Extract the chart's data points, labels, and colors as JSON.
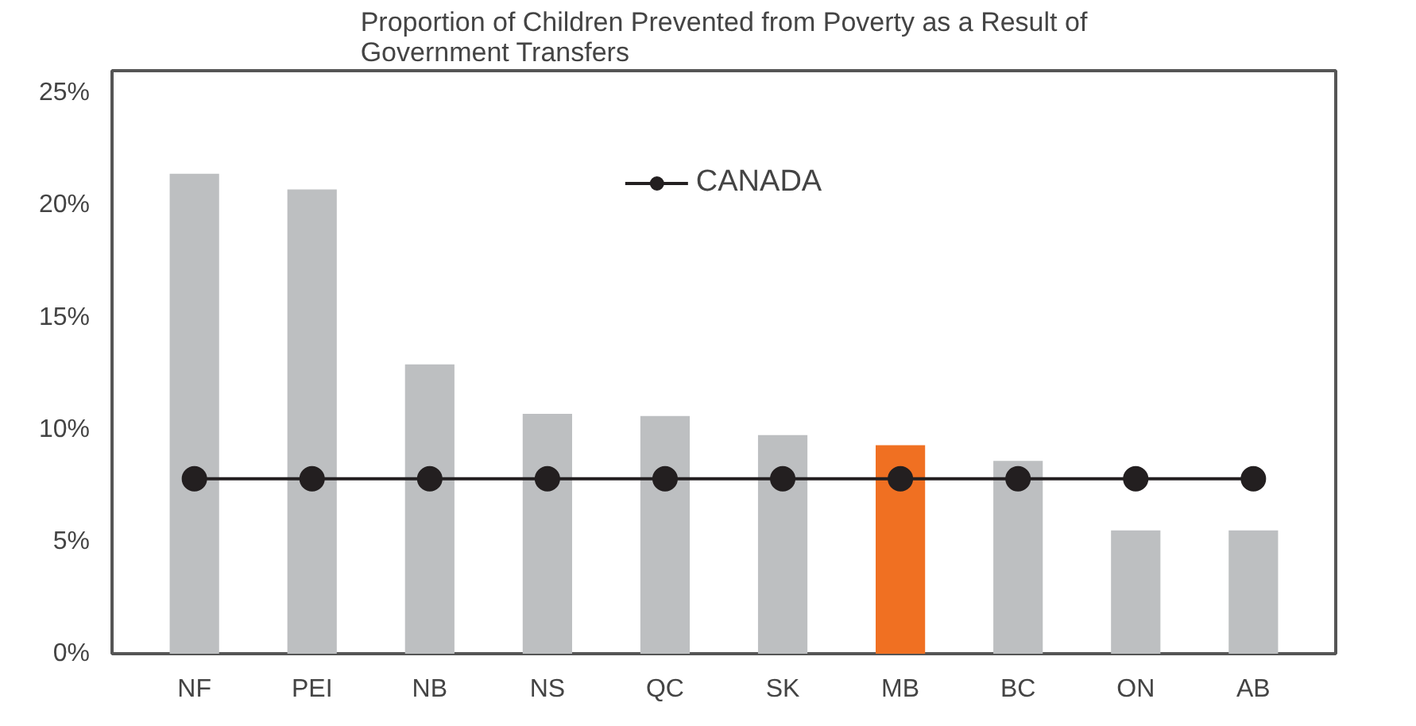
{
  "chart_data": {
    "type": "bar",
    "title": "Proportion of Children Prevented from Poverty as a Result of\nGovernment Transfers",
    "categories": [
      "NF",
      "PEI",
      "NB",
      "NS",
      "QC",
      "SK",
      "MB",
      "BC",
      "ON",
      "AB"
    ],
    "series": [
      {
        "colors": [
          "#bdbfc1",
          "#bdbfc1",
          "#bdbfc1",
          "#bdbfc1",
          "#bdbfc1",
          "#bdbfc1",
          "#f07022",
          "#bdbfc1",
          "#bdbfc1",
          "#bdbfc1"
        ],
        "values": [
          21.4,
          20.7,
          12.9,
          10.7,
          10.6,
          9.75,
          9.3,
          8.6,
          5.5,
          5.5
        ]
      },
      {
        "type": "line",
        "name": "CANADA",
        "color": "#231f20",
        "marker": "circle",
        "values": [
          7.8,
          7.8,
          7.8,
          7.8,
          7.8,
          7.8,
          7.8,
          7.8,
          7.8,
          7.8
        ]
      }
    ],
    "ylim": [
      0,
      26
    ],
    "yticks": [
      {
        "value": 0,
        "label": "0%"
      },
      {
        "value": 5,
        "label": "5%"
      },
      {
        "value": 10,
        "label": "10%"
      },
      {
        "value": 15,
        "label": "15%"
      },
      {
        "value": 20,
        "label": "20%"
      },
      {
        "value": 25,
        "label": "25%"
      }
    ],
    "grid": false,
    "legend": "top"
  }
}
